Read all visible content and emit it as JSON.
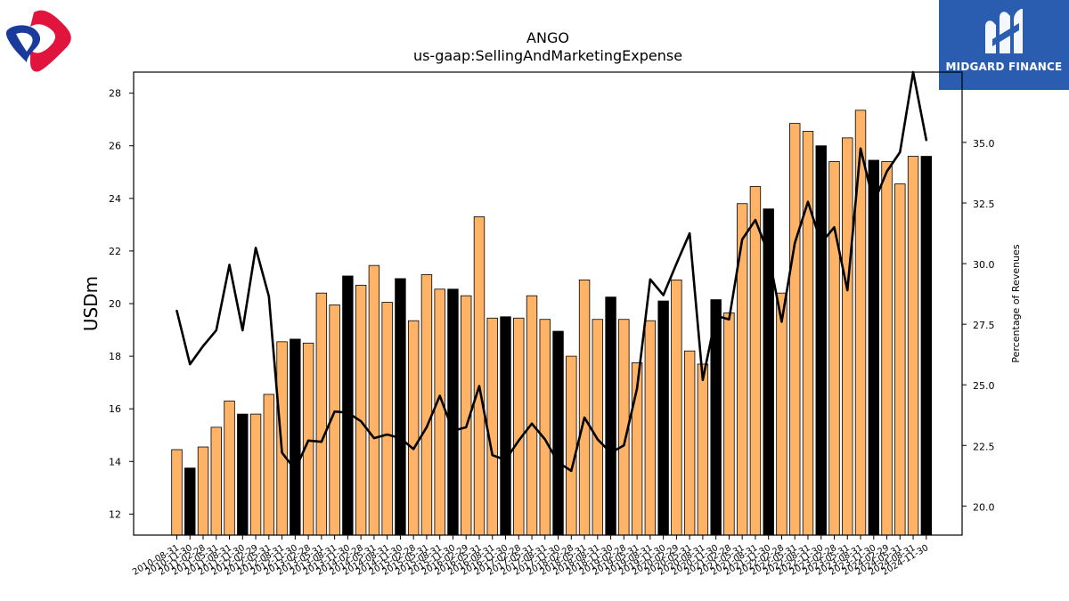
{
  "brand": {
    "name": "MIDGARD FINANCE"
  },
  "colors": {
    "bar_quarter": "#ffb366",
    "bar_fiscal_year_end": "#000000",
    "line": "#000000",
    "logo_right_bg": "#2a5cb0",
    "logo_left_red": "#e0143c",
    "logo_left_blue": "#1a3a9c"
  },
  "chart_data": {
    "type": "bar",
    "title": "ANGO",
    "subtitle": "us-gaap:SellingAndMarketingExpense",
    "ylabel": "USDm",
    "y2label": "Percentage of Revenues",
    "ylim": [
      11.2,
      28.8
    ],
    "y2lim": [
      18.8,
      37.9
    ],
    "yticks": [
      "12",
      "14",
      "16",
      "18",
      "20",
      "22",
      "24",
      "26",
      "28"
    ],
    "y2ticks": [
      "20.0",
      "22.5",
      "25.0",
      "27.5",
      "30.0",
      "32.5",
      "35.0"
    ],
    "grid": false,
    "categories": [
      "2010-08-31",
      "2010-11-30",
      "2011-02-28",
      "2011-05-31",
      "2011-08-31",
      "2011-11-30",
      "2012-02-29",
      "2012-05-31",
      "2012-08-31",
      "2012-11-30",
      "2013-02-28",
      "2013-05-31",
      "2013-08-31",
      "2013-11-30",
      "2014-02-28",
      "2014-05-31",
      "2014-08-31",
      "2014-11-30",
      "2015-02-28",
      "2015-05-31",
      "2015-08-31",
      "2015-11-30",
      "2016-02-29",
      "2016-05-31",
      "2016-08-31",
      "2016-11-30",
      "2017-02-28",
      "2017-05-31",
      "2017-08-31",
      "2017-11-30",
      "2018-02-28",
      "2018-05-31",
      "2018-08-31",
      "2018-11-30",
      "2019-02-28",
      "2019-05-31",
      "2019-08-31",
      "2019-11-30",
      "2020-02-29",
      "2020-05-31",
      "2020-08-31",
      "2020-11-30",
      "2021-02-28",
      "2021-05-31",
      "2021-08-31",
      "2021-11-30",
      "2022-02-28",
      "2022-05-31",
      "2022-08-31",
      "2022-11-30",
      "2023-02-28",
      "2023-05-31",
      "2023-08-31",
      "2023-11-30",
      "2024-02-29",
      "2024-05-31",
      "2024-08-31",
      "2024-11-30"
    ],
    "series": [
      {
        "kind": "bar",
        "axis": "left",
        "values": [
          14.45,
          13.75,
          14.55,
          15.3,
          16.3,
          15.8,
          15.8,
          16.55,
          18.55,
          18.65,
          18.5,
          20.4,
          19.95,
          21.05,
          20.7,
          21.45,
          20.05,
          20.95,
          19.35,
          21.1,
          20.55,
          20.55,
          20.3,
          23.3,
          19.45,
          19.5,
          19.45,
          20.3,
          19.4,
          18.95,
          18.0,
          20.9,
          19.4,
          20.25,
          19.4,
          17.75,
          19.35,
          20.1,
          20.9,
          18.2,
          17.7,
          20.15,
          19.65,
          23.8,
          24.45,
          23.6,
          20.4,
          26.85,
          26.55,
          26.0,
          25.4,
          26.3,
          27.35,
          25.45,
          25.4,
          24.55,
          25.6,
          25.6
        ],
        "highlight": [
          false,
          true,
          false,
          false,
          false,
          true,
          false,
          false,
          false,
          true,
          false,
          false,
          false,
          true,
          false,
          false,
          false,
          true,
          false,
          false,
          false,
          true,
          false,
          false,
          false,
          true,
          false,
          false,
          false,
          true,
          false,
          false,
          false,
          true,
          false,
          false,
          false,
          true,
          false,
          false,
          false,
          true,
          false,
          false,
          false,
          true,
          false,
          false,
          false,
          true,
          false,
          false,
          false,
          true,
          false,
          false,
          false,
          true
        ]
      },
      {
        "kind": "line",
        "axis": "right",
        "values": [
          28.05,
          25.85,
          26.6,
          27.25,
          29.95,
          27.25,
          30.65,
          28.65,
          22.2,
          21.5,
          22.7,
          22.65,
          23.9,
          23.85,
          23.5,
          22.8,
          22.95,
          22.8,
          22.35,
          23.25,
          24.55,
          23.1,
          23.25,
          24.95,
          22.1,
          21.9,
          22.7,
          23.4,
          22.75,
          21.8,
          21.45,
          23.65,
          22.75,
          22.2,
          22.5,
          24.85,
          29.35,
          28.7,
          30.0,
          31.25,
          25.2,
          27.85,
          27.7,
          31.0,
          31.8,
          30.4,
          27.6,
          30.85,
          32.55,
          30.85,
          31.5,
          28.9,
          34.75,
          32.5,
          33.8,
          34.6,
          37.9,
          35.1
        ]
      }
    ]
  }
}
